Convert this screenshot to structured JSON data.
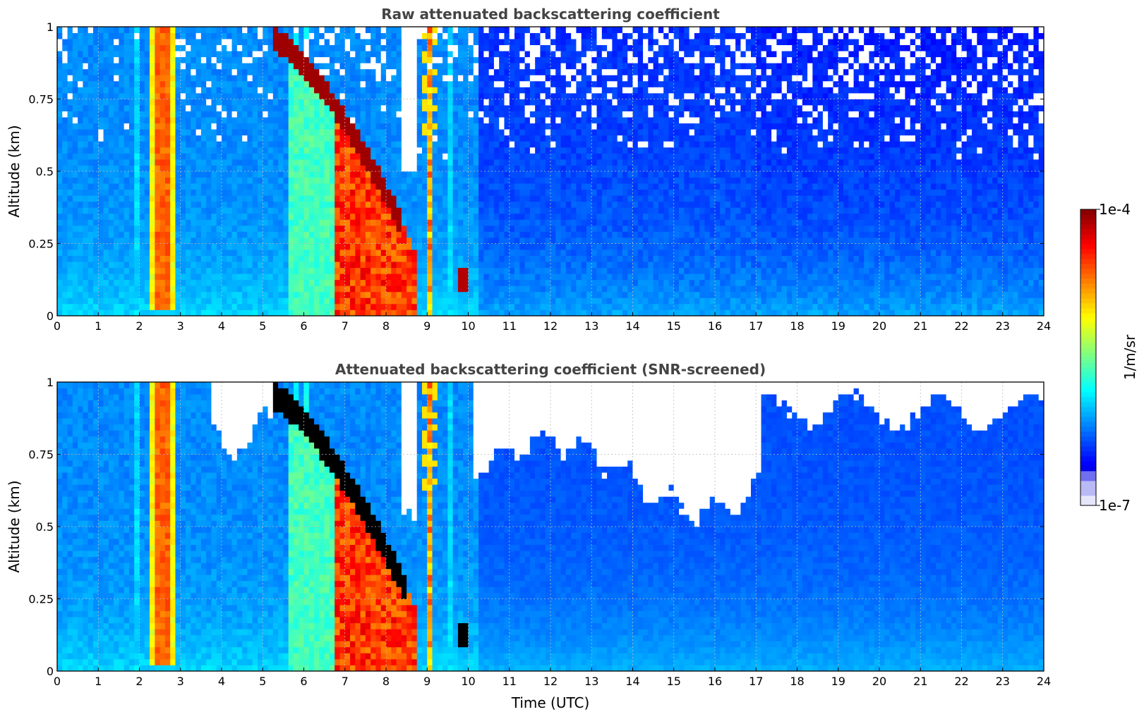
{
  "chart_data": [
    {
      "type": "heatmap",
      "title": "Raw attenuated backscattering coefficient",
      "xlabel": "",
      "ylabel": "Altitude (km)",
      "xlim": [
        0,
        24
      ],
      "ylim": [
        0,
        1
      ],
      "x_ticks": [
        "0",
        "1",
        "2",
        "3",
        "4",
        "5",
        "6",
        "7",
        "8",
        "9",
        "10",
        "11",
        "12",
        "13",
        "14",
        "15",
        "16",
        "17",
        "18",
        "19",
        "20",
        "21",
        "22",
        "23",
        "24"
      ],
      "y_ticks": [
        "0",
        "0.25",
        "0.5",
        "0.75",
        "1"
      ],
      "grid": true,
      "snr_screened": false
    },
    {
      "type": "heatmap",
      "title": "Attenuated backscattering coefficient (SNR-screened)",
      "xlabel": "Time (UTC)",
      "ylabel": "Altitude (km)",
      "xlim": [
        0,
        24
      ],
      "ylim": [
        0,
        1
      ],
      "x_ticks": [
        "0",
        "1",
        "2",
        "3",
        "4",
        "5",
        "6",
        "7",
        "8",
        "9",
        "10",
        "11",
        "12",
        "13",
        "14",
        "15",
        "16",
        "17",
        "18",
        "19",
        "20",
        "21",
        "22",
        "23",
        "24"
      ],
      "y_ticks": [
        "0",
        "0.25",
        "0.5",
        "0.75",
        "1"
      ],
      "grid": true,
      "snr_screened": true
    }
  ],
  "colorbar": {
    "label": "1/m/sr",
    "max_label": "1e-4",
    "min_label": "1e-7",
    "scale": "log",
    "range": [
      1e-07,
      0.0001
    ],
    "colormap": "jet"
  }
}
